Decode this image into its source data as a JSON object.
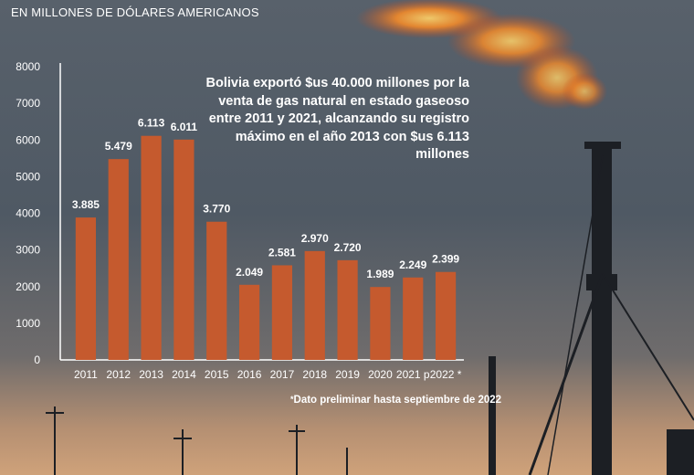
{
  "subtitle": "EN MILLONES DE DÓLARES AMERICANOS",
  "note": "Bolivia exportó $us 40.000 millones por la venta de gas natural en estado gaseoso entre 2011 y 2021, alcanzando su registro máximo en el año 2013 con $us 6.113 millones",
  "footnote_mark": "*",
  "footnote": "Dato preliminar hasta septiembre de 2022",
  "colors": {
    "bar": "#c55a2e",
    "text": "#ffffff",
    "axis": "#ffffff"
  },
  "chart_data": {
    "type": "bar",
    "title": "",
    "xlabel": "",
    "ylabel": "",
    "categories": [
      "2011",
      "2012",
      "2013",
      "2014",
      "2015",
      "2016",
      "2017",
      "2018",
      "2019",
      "2020",
      "2021 p",
      "2022 *"
    ],
    "values": [
      3885,
      5479,
      6113,
      6011,
      3770,
      2049,
      2581,
      2970,
      2720,
      1989,
      2249,
      2399
    ],
    "value_labels": [
      "3.885",
      "5.479",
      "6.113",
      "6.011",
      "3.770",
      "2.049",
      "2.581",
      "2.970",
      "2.720",
      "1.989",
      "2.249",
      "2.399"
    ],
    "yticks": [
      0,
      1000,
      2000,
      3000,
      4000,
      5000,
      6000,
      7000,
      8000
    ],
    "ylim": [
      0,
      8000
    ],
    "grid": false,
    "legend": "none"
  }
}
